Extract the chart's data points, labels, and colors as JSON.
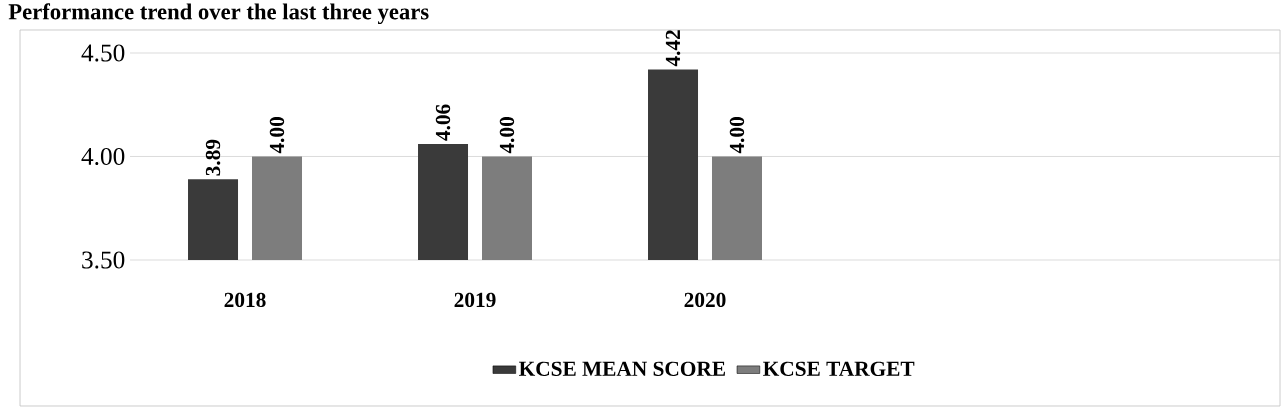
{
  "chart_data": {
    "type": "bar",
    "title": "Performance trend over the last three years",
    "categories": [
      "2018",
      "2019",
      "2020",
      null,
      null
    ],
    "series": [
      {
        "name": "KCSE MEAN SCORE",
        "color": "#3a3a3a",
        "values": [
          3.89,
          4.06,
          4.42,
          null,
          null
        ],
        "value_labels": [
          "3.89",
          "4.06",
          "4.42",
          null,
          null
        ]
      },
      {
        "name": "KCSE TARGET",
        "color": "#7d7d7d",
        "values": [
          4.0,
          4.0,
          4.0,
          null,
          null
        ],
        "value_labels": [
          "4.00",
          "4.00",
          "4.00",
          null,
          null
        ]
      }
    ],
    "ylim": [
      3.5,
      4.5
    ],
    "yticks": [
      {
        "value": 3.5,
        "label": "3.50"
      },
      {
        "value": 4.0,
        "label": "4.00"
      },
      {
        "value": 4.5,
        "label": "4.50"
      }
    ],
    "grid": "y",
    "legend": "bottom"
  }
}
